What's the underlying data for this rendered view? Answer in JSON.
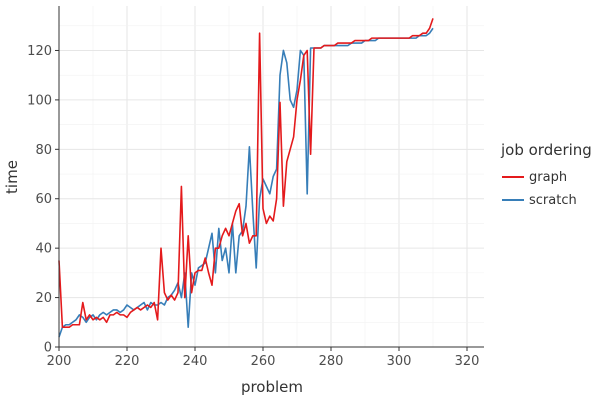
{
  "chart_data": {
    "type": "line",
    "title": "",
    "xlabel": "problem",
    "ylabel": "time",
    "xlim": [
      200,
      325
    ],
    "ylim": [
      0,
      138
    ],
    "x_ticks": [
      200,
      220,
      240,
      260,
      280,
      300,
      320
    ],
    "y_ticks": [
      0,
      20,
      40,
      60,
      80,
      100,
      120
    ],
    "grid": true,
    "legend": {
      "title": "job ordering",
      "position": "right"
    },
    "series": [
      {
        "name": "scratch",
        "color": "#377eb8",
        "points": [
          [
            200,
            4
          ],
          [
            201,
            8
          ],
          [
            202,
            9
          ],
          [
            203,
            9
          ],
          [
            204,
            10
          ],
          [
            205,
            11
          ],
          [
            206,
            13
          ],
          [
            207,
            12
          ],
          [
            208,
            10
          ],
          [
            209,
            12
          ],
          [
            210,
            13
          ],
          [
            211,
            11
          ],
          [
            212,
            13
          ],
          [
            213,
            14
          ],
          [
            214,
            13
          ],
          [
            215,
            14
          ],
          [
            216,
            15
          ],
          [
            217,
            15
          ],
          [
            218,
            14
          ],
          [
            219,
            15
          ],
          [
            220,
            17
          ],
          [
            221,
            16
          ],
          [
            222,
            15
          ],
          [
            223,
            16
          ],
          [
            224,
            17
          ],
          [
            225,
            18
          ],
          [
            226,
            15
          ],
          [
            227,
            18
          ],
          [
            228,
            17
          ],
          [
            229,
            17
          ],
          [
            230,
            18
          ],
          [
            231,
            17
          ],
          [
            232,
            20
          ],
          [
            233,
            21
          ],
          [
            234,
            23
          ],
          [
            235,
            26
          ],
          [
            236,
            20
          ],
          [
            237,
            30
          ],
          [
            238,
            8
          ],
          [
            239,
            30
          ],
          [
            240,
            25
          ],
          [
            241,
            32
          ],
          [
            242,
            33
          ],
          [
            243,
            34
          ],
          [
            244,
            40
          ],
          [
            245,
            46
          ],
          [
            246,
            30
          ],
          [
            247,
            48
          ],
          [
            248,
            35
          ],
          [
            249,
            40
          ],
          [
            250,
            30
          ],
          [
            251,
            50
          ],
          [
            252,
            30
          ],
          [
            253,
            45
          ],
          [
            254,
            47
          ],
          [
            255,
            57
          ],
          [
            256,
            81
          ],
          [
            257,
            55
          ],
          [
            258,
            32
          ],
          [
            259,
            60
          ],
          [
            260,
            68
          ],
          [
            261,
            65
          ],
          [
            262,
            62
          ],
          [
            263,
            69
          ],
          [
            264,
            72
          ],
          [
            265,
            110
          ],
          [
            266,
            120
          ],
          [
            267,
            115
          ],
          [
            268,
            100
          ],
          [
            269,
            97
          ],
          [
            270,
            104
          ],
          [
            271,
            120
          ],
          [
            272,
            118
          ],
          [
            273,
            62
          ],
          [
            274,
            121
          ],
          [
            275,
            121
          ],
          [
            276,
            121
          ],
          [
            277,
            121
          ],
          [
            278,
            122
          ],
          [
            279,
            122
          ],
          [
            280,
            122
          ],
          [
            281,
            122
          ],
          [
            282,
            122
          ],
          [
            283,
            122
          ],
          [
            284,
            122
          ],
          [
            285,
            122
          ],
          [
            286,
            123
          ],
          [
            287,
            123
          ],
          [
            288,
            123
          ],
          [
            289,
            123
          ],
          [
            290,
            124
          ],
          [
            291,
            124
          ],
          [
            292,
            124
          ],
          [
            293,
            124
          ],
          [
            294,
            125
          ],
          [
            295,
            125
          ],
          [
            296,
            125
          ],
          [
            297,
            125
          ],
          [
            298,
            125
          ],
          [
            299,
            125
          ],
          [
            300,
            125
          ],
          [
            301,
            125
          ],
          [
            302,
            125
          ],
          [
            303,
            125
          ],
          [
            304,
            125
          ],
          [
            305,
            125
          ],
          [
            306,
            126
          ],
          [
            307,
            126
          ],
          [
            308,
            126
          ],
          [
            309,
            127
          ],
          [
            310,
            129
          ]
        ]
      },
      {
        "name": "graph",
        "color": "#e41a1c",
        "points": [
          [
            200,
            35
          ],
          [
            200.3,
            27
          ],
          [
            201,
            8
          ],
          [
            202,
            8
          ],
          [
            203,
            8
          ],
          [
            204,
            9
          ],
          [
            205,
            9
          ],
          [
            206,
            9
          ],
          [
            207,
            18
          ],
          [
            208,
            11
          ],
          [
            209,
            13
          ],
          [
            210,
            11
          ],
          [
            211,
            12
          ],
          [
            212,
            11
          ],
          [
            213,
            12
          ],
          [
            214,
            10
          ],
          [
            215,
            13
          ],
          [
            216,
            13
          ],
          [
            217,
            14
          ],
          [
            218,
            13
          ],
          [
            219,
            13
          ],
          [
            220,
            12
          ],
          [
            221,
            14
          ],
          [
            222,
            15
          ],
          [
            223,
            16
          ],
          [
            224,
            15
          ],
          [
            225,
            16
          ],
          [
            226,
            17
          ],
          [
            227,
            16
          ],
          [
            228,
            18
          ],
          [
            229,
            11
          ],
          [
            230,
            40
          ],
          [
            231,
            22
          ],
          [
            232,
            19
          ],
          [
            233,
            21
          ],
          [
            234,
            19
          ],
          [
            235,
            22
          ],
          [
            236,
            65
          ],
          [
            237,
            20
          ],
          [
            238,
            45
          ],
          [
            239,
            22
          ],
          [
            240,
            30
          ],
          [
            241,
            31
          ],
          [
            242,
            31
          ],
          [
            243,
            36
          ],
          [
            244,
            30
          ],
          [
            245,
            25
          ],
          [
            246,
            40
          ],
          [
            247,
            40
          ],
          [
            248,
            45
          ],
          [
            249,
            48
          ],
          [
            250,
            45
          ],
          [
            251,
            50
          ],
          [
            252,
            55
          ],
          [
            253,
            58
          ],
          [
            254,
            45
          ],
          [
            255,
            50
          ],
          [
            256,
            42
          ],
          [
            257,
            45
          ],
          [
            258,
            45
          ],
          [
            259,
            127
          ],
          [
            260,
            56
          ],
          [
            261,
            50
          ],
          [
            262,
            53
          ],
          [
            263,
            51
          ],
          [
            264,
            60
          ],
          [
            265,
            99
          ],
          [
            266,
            57
          ],
          [
            267,
            75
          ],
          [
            268,
            80
          ],
          [
            269,
            85
          ],
          [
            270,
            100
          ],
          [
            271,
            108
          ],
          [
            272,
            118
          ],
          [
            273,
            120
          ],
          [
            274,
            78
          ],
          [
            275,
            121
          ],
          [
            276,
            121
          ],
          [
            277,
            121
          ],
          [
            278,
            122
          ],
          [
            279,
            122
          ],
          [
            280,
            122
          ],
          [
            281,
            122
          ],
          [
            282,
            123
          ],
          [
            283,
            123
          ],
          [
            284,
            123
          ],
          [
            285,
            123
          ],
          [
            286,
            123
          ],
          [
            287,
            124
          ],
          [
            288,
            124
          ],
          [
            289,
            124
          ],
          [
            290,
            124
          ],
          [
            291,
            124
          ],
          [
            292,
            125
          ],
          [
            293,
            125
          ],
          [
            294,
            125
          ],
          [
            295,
            125
          ],
          [
            296,
            125
          ],
          [
            297,
            125
          ],
          [
            298,
            125
          ],
          [
            299,
            125
          ],
          [
            300,
            125
          ],
          [
            301,
            125
          ],
          [
            302,
            125
          ],
          [
            303,
            125
          ],
          [
            304,
            126
          ],
          [
            305,
            126
          ],
          [
            306,
            126
          ],
          [
            307,
            127
          ],
          [
            308,
            127
          ],
          [
            309,
            129
          ],
          [
            310,
            133
          ]
        ]
      }
    ]
  }
}
